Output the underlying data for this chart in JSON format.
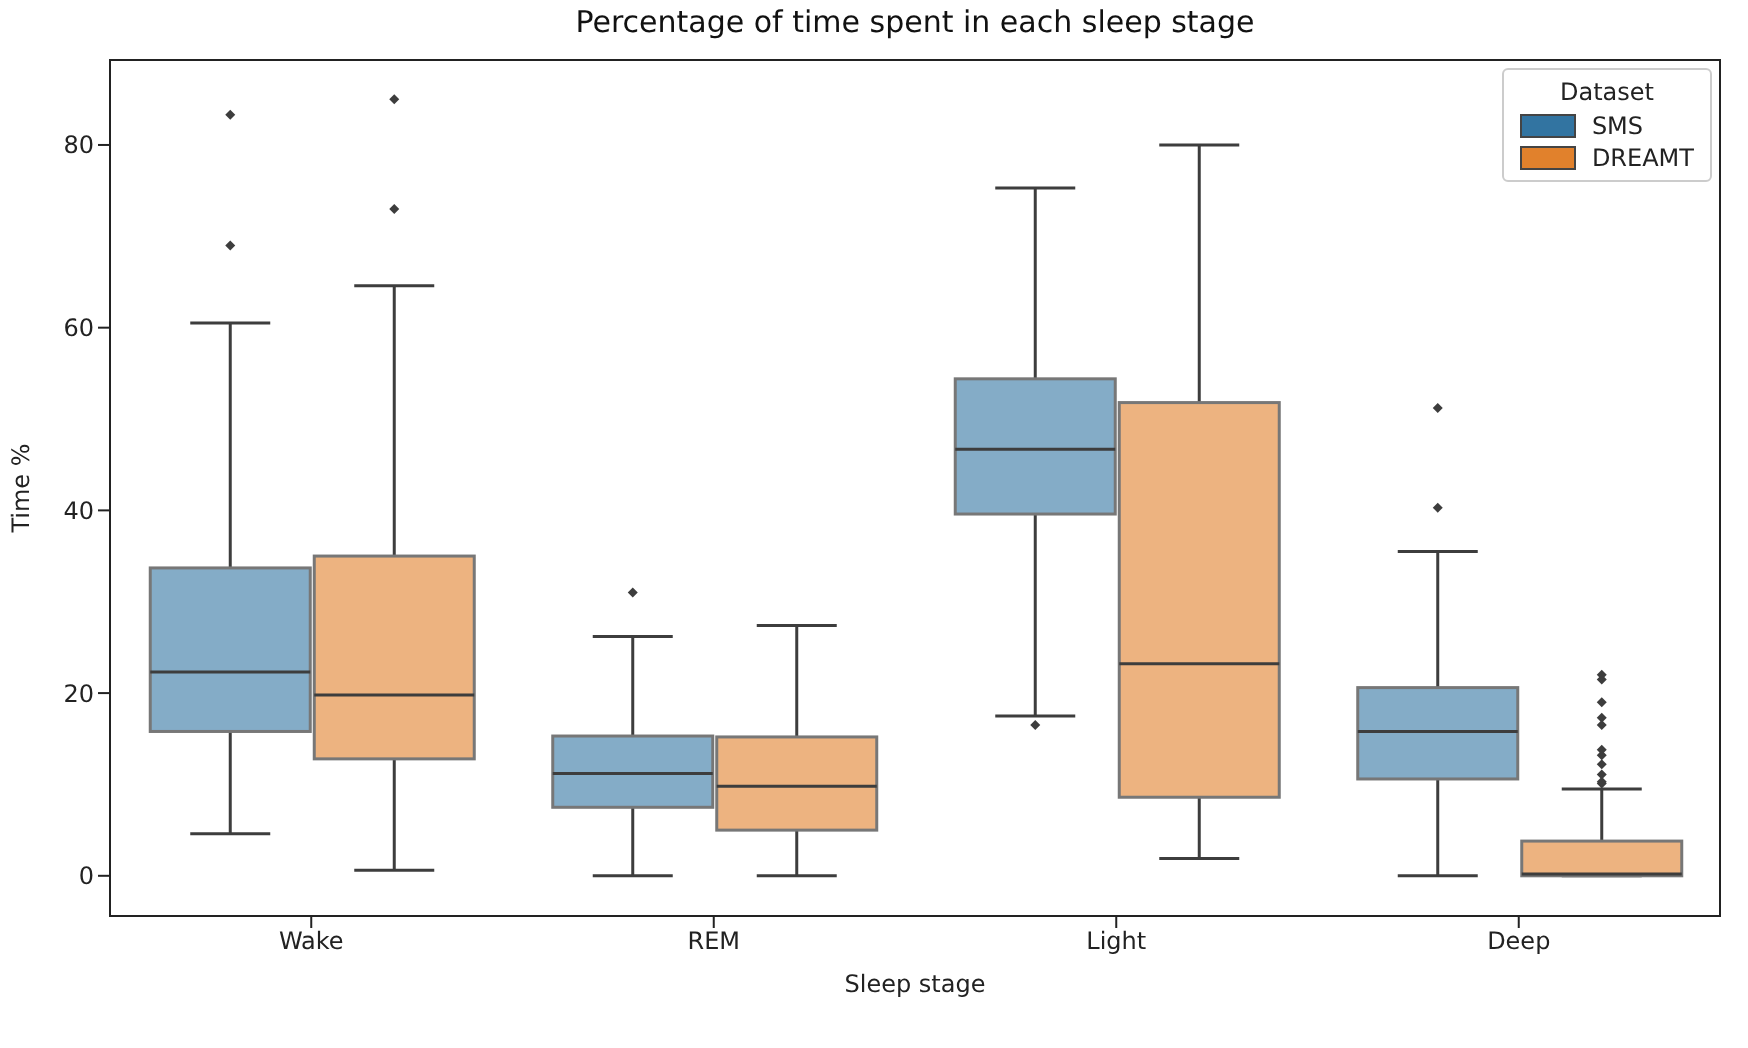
{
  "chart_data": {
    "type": "box",
    "title": "Percentage of time spent in each sleep stage",
    "xlabel": "Sleep stage",
    "ylabel": "Time %",
    "legend_title": "Dataset",
    "legend": "top right",
    "categories": [
      "Wake",
      "REM",
      "Light",
      "Deep"
    ],
    "ylim": [
      -4.4,
      89.3
    ],
    "yticks": [
      0,
      20,
      40,
      60,
      80
    ],
    "series": [
      {
        "name": "SMS",
        "color": "#3274a1",
        "boxes": [
          {
            "low": 4.6,
            "q1": 15.8,
            "median": 22.3,
            "q3": 33.7,
            "high": 60.5,
            "outliers": [
              69,
              83.3
            ]
          },
          {
            "low": 0,
            "q1": 7.5,
            "median": 11.2,
            "q3": 15.3,
            "high": 26.2,
            "outliers": [
              31
            ]
          },
          {
            "low": 17.5,
            "q1": 39.6,
            "median": 46.7,
            "q3": 54.4,
            "high": 75.3,
            "outliers": [
              16.5
            ]
          },
          {
            "low": 0,
            "q1": 10.6,
            "median": 15.8,
            "q3": 20.6,
            "high": 35.5,
            "outliers": [
              40.3,
              51.2
            ]
          }
        ]
      },
      {
        "name": "DREAMT",
        "color": "#e1812c",
        "boxes": [
          {
            "low": 0.6,
            "q1": 12.8,
            "median": 19.8,
            "q3": 35,
            "high": 64.6,
            "outliers": [
              73,
              85
            ]
          },
          {
            "low": 0,
            "q1": 5,
            "median": 9.8,
            "q3": 15.2,
            "high": 27.4
          },
          {
            "low": 1.9,
            "q1": 8.6,
            "median": 23.2,
            "q3": 51.8,
            "high": 80
          },
          {
            "low": 0,
            "q1": 0,
            "median": 0.2,
            "q3": 3.8,
            "high": 9.5,
            "outliers": [
              10.1,
              10.3,
              11.1,
              12.2,
              13.2,
              13.8,
              16.5,
              17.3,
              19,
              21.5,
              22
            ]
          }
        ]
      }
    ]
  }
}
